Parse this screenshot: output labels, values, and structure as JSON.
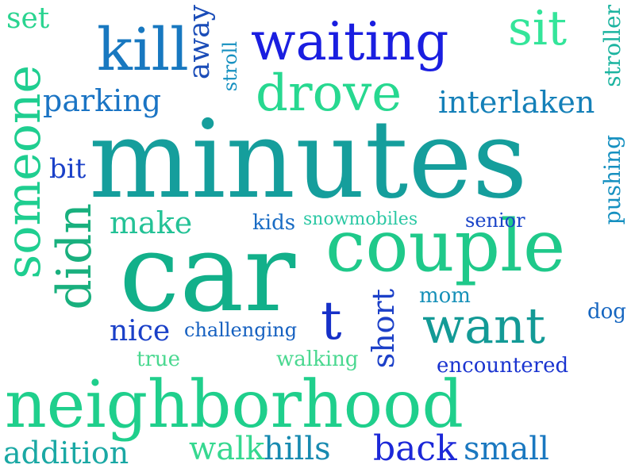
{
  "words": [
    {
      "id": "minutes",
      "text": "minutes",
      "color": "#159e9c"
    },
    {
      "id": "car",
      "text": "car",
      "color": "#12b08a"
    },
    {
      "id": "couple",
      "text": "couple",
      "color": "#1fc98a"
    },
    {
      "id": "neighborhood",
      "text": "neighborhood",
      "color": "#1fcf8c"
    },
    {
      "id": "waiting",
      "text": "waiting",
      "color": "#1a1ee0"
    },
    {
      "id": "kill",
      "text": "kill",
      "color": "#1878c0"
    },
    {
      "id": "drove",
      "text": "drove",
      "color": "#27d890"
    },
    {
      "id": "sit",
      "text": "sit",
      "color": "#34e59a"
    },
    {
      "id": "set",
      "text": "set",
      "color": "#2ad490"
    },
    {
      "id": "someone",
      "text": "someone",
      "color": "#1fce90"
    },
    {
      "id": "didn",
      "text": "didn",
      "color": "#19b07e"
    },
    {
      "id": "want",
      "text": "want",
      "color": "#139a96"
    },
    {
      "id": "t",
      "text": "t",
      "color": "#1630c8"
    },
    {
      "id": "parking",
      "text": "parking",
      "color": "#1a74c4"
    },
    {
      "id": "interlaken",
      "text": "interlaken",
      "color": "#1580b8"
    },
    {
      "id": "away",
      "text": "away",
      "color": "#1a4cb8"
    },
    {
      "id": "stroll",
      "text": "stroll",
      "color": "#1690c0"
    },
    {
      "id": "stroller",
      "text": "stroller",
      "color": "#1cb4a0"
    },
    {
      "id": "pushing",
      "text": "pushing",
      "color": "#1690c0"
    },
    {
      "id": "bit",
      "text": "bit",
      "color": "#1a40c8"
    },
    {
      "id": "make",
      "text": "make",
      "color": "#24c296"
    },
    {
      "id": "kids",
      "text": "kids",
      "color": "#1a6cc4"
    },
    {
      "id": "snowmobiles",
      "text": "snowmobiles",
      "color": "#2bc8a4"
    },
    {
      "id": "senior",
      "text": "senior",
      "color": "#1a44c8"
    },
    {
      "id": "mom",
      "text": "mom",
      "color": "#1690b8"
    },
    {
      "id": "dog",
      "text": "dog",
      "color": "#1666c0"
    },
    {
      "id": "nice",
      "text": "nice",
      "color": "#1a40c8"
    },
    {
      "id": "challenging",
      "text": "challenging",
      "color": "#1560c0"
    },
    {
      "id": "short",
      "text": "short",
      "color": "#1c40c8"
    },
    {
      "id": "true",
      "text": "true",
      "color": "#4ad890"
    },
    {
      "id": "walking",
      "text": "walking",
      "color": "#4ad890"
    },
    {
      "id": "encountered",
      "text": "encountered",
      "color": "#1a34d0"
    },
    {
      "id": "addition",
      "text": "addition",
      "color": "#1aa8a4"
    },
    {
      "id": "walk",
      "text": "walk",
      "color": "#36d890"
    },
    {
      "id": "hills",
      "text": "hills",
      "color": "#178ab0"
    },
    {
      "id": "back",
      "text": "back",
      "color": "#1c28d8"
    },
    {
      "id": "small",
      "text": "small",
      "color": "#1a78c0"
    }
  ]
}
